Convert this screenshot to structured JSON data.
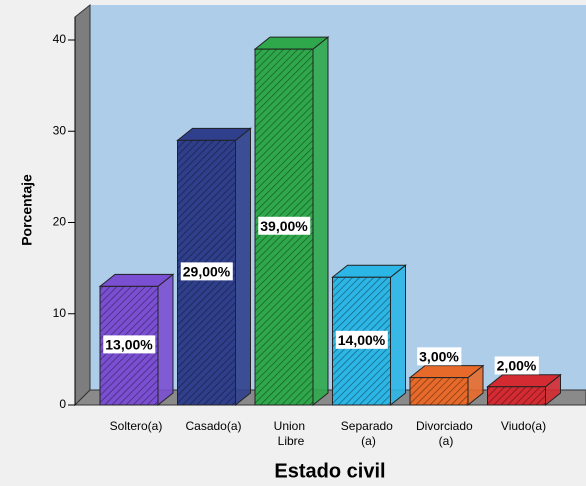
{
  "chart_data": {
    "type": "bar3d",
    "xlabel": "Estado civil",
    "ylabel": "Porcentaje",
    "categories": [
      "Soltero(a)",
      "Casado(a)",
      "Union Libre",
      "Separado (a)",
      "Divorciado (a)",
      "Viudo(a)"
    ],
    "values": [
      13,
      29,
      39,
      14,
      3,
      2
    ],
    "value_labels": [
      "13,00%",
      "29,00%",
      "39,00%",
      "14,00%",
      "3,00%",
      "2,00%"
    ],
    "colors": [
      "#7a4fd2",
      "#2f3f8c",
      "#2fa84b",
      "#2bb6e6",
      "#e86a2a",
      "#d42a31"
    ],
    "ylim": [
      0,
      44
    ],
    "yticks": [
      0,
      10,
      20,
      30,
      40
    ]
  }
}
